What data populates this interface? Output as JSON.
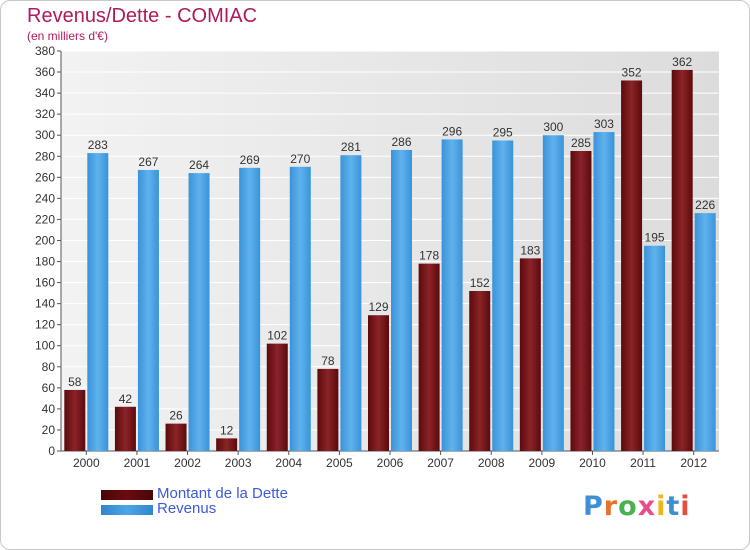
{
  "header": {
    "title": "Revenus/Dette - COMIAC",
    "subtitle": "(en milliers d'€)"
  },
  "colors": {
    "dette": "#7d1b1f",
    "revenus": "#4da6e6",
    "title": "#b0195e",
    "legend_text": "#3b5bd9"
  },
  "legend": {
    "items": [
      {
        "label": "Montant de la Dette",
        "color": "#6b0b0e"
      },
      {
        "label": "Revenus",
        "color": "#4da6e6"
      }
    ]
  },
  "logo": {
    "text": "Proxiti",
    "letter_colors": [
      "#3f8fd6",
      "#e8702a",
      "#4caf50",
      "#e84c8b",
      "#f1b51c",
      "#3f8fd6",
      "#e84c3d"
    ]
  },
  "chart_data": {
    "type": "bar",
    "title": "Revenus/Dette - COMIAC",
    "subtitle": "(en milliers d'€)",
    "categories": [
      "2000",
      "2001",
      "2002",
      "2003",
      "2004",
      "2005",
      "2006",
      "2007",
      "2008",
      "2009",
      "2010",
      "2011",
      "2012"
    ],
    "series": [
      {
        "name": "Montant de la Dette",
        "values": [
          58,
          42,
          26,
          12,
          102,
          78,
          129,
          178,
          152,
          183,
          285,
          352,
          362
        ]
      },
      {
        "name": "Revenus",
        "values": [
          283,
          267,
          264,
          269,
          270,
          281,
          286,
          296,
          295,
          300,
          303,
          195,
          226
        ]
      }
    ],
    "ylim": [
      0,
      380
    ],
    "y_ticks": [
      0,
      20,
      40,
      60,
      80,
      100,
      120,
      140,
      160,
      180,
      200,
      220,
      240,
      260,
      280,
      300,
      320,
      340,
      360,
      380
    ],
    "grid": true,
    "legend_position": "bottom-left"
  }
}
